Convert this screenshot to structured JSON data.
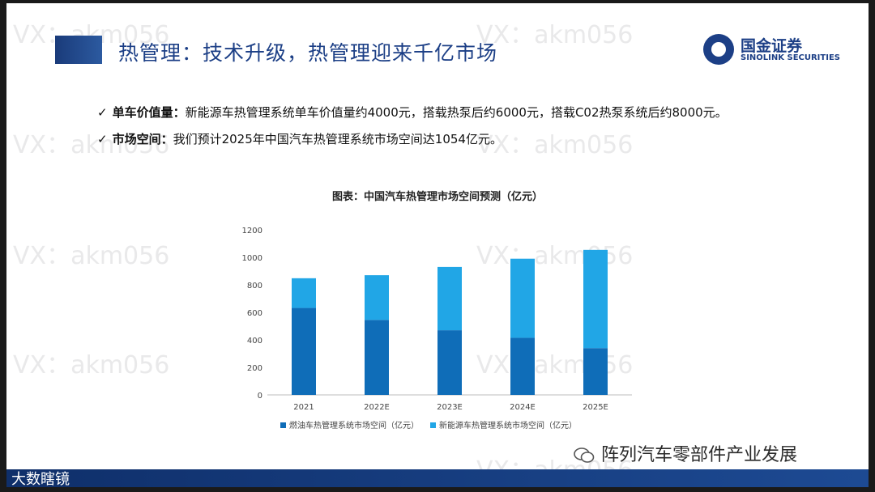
{
  "header": {
    "title": "热管理：技术升级，热管理迎来千亿市场"
  },
  "logo": {
    "cn": "国金证券",
    "en": "SINOLINK SECURITIES"
  },
  "bullets": [
    {
      "check": "✓",
      "label": "单车价值量：",
      "text": "新能源车热管理系统单车价值量约4000元，搭载热泵后约6000元，搭载C02热泵系统后约8000元。"
    },
    {
      "check": "✓",
      "label": "市场空间：",
      "text": "我们预计2025年中国汽车热管理系统市场空间达1054亿元。"
    }
  ],
  "watermark": {
    "text": "VX：akm056"
  },
  "chart_data": {
    "type": "bar",
    "stacked": true,
    "title": "图表：中国汽车热管理市场空间预测（亿元）",
    "categories": [
      "2021",
      "2022E",
      "2023E",
      "2024E",
      "2025E"
    ],
    "series": [
      {
        "name": "燃油车热管理系统市场空间（亿元）",
        "color": "#0f6db8",
        "values": [
          632,
          545,
          470,
          415,
          340
        ]
      },
      {
        "name": "新能源车热管理系统市场空间（亿元）",
        "color": "#21a6e6",
        "values": [
          216,
          325,
          460,
          575,
          714
        ]
      }
    ],
    "ylim": [
      0,
      1200
    ],
    "yticks": [
      0,
      200,
      400,
      600,
      800,
      1000,
      1200
    ],
    "grid": false,
    "legend_position": "bottom"
  },
  "footer": {
    "wechat_text": "阵列汽车零部件产业发展",
    "brand_text": "大数瞎镜"
  }
}
